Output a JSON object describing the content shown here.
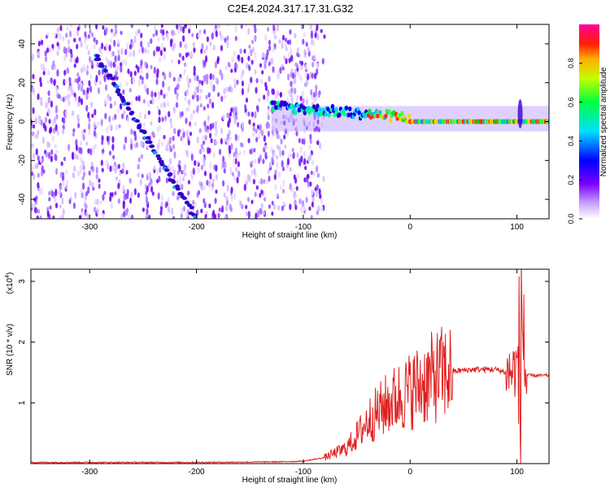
{
  "title": "C2E4.2024.317.17.31.G32",
  "chart_data": [
    {
      "type": "heatmap",
      "xlabel": "Height of straight line (km)",
      "ylabel": "Frequency (Hz)",
      "xlim": [
        -355,
        130
      ],
      "ylim": [
        -50,
        50
      ],
      "xticks": [
        -300,
        -200,
        -100,
        0,
        100
      ],
      "yticks": [
        -40,
        -20,
        0,
        20,
        40
      ],
      "colorbar": {
        "label": "Normalized spectral amplitude",
        "range": [
          0,
          1
        ],
        "ticks": [
          0.0,
          0.2,
          0.4,
          0.6,
          0.8
        ],
        "colormap": [
          "#ffffff",
          "#8000ff",
          "#0000ff",
          "#00ffff",
          "#00ff00",
          "#ffff00",
          "#ff0000",
          "#ff00ff"
        ]
      },
      "features": {
        "noise_region_x": [
          -355,
          -90
        ],
        "diagonal_track": {
          "x": [
            -295,
            -200
          ],
          "y": [
            35,
            -50
          ]
        },
        "main_signal": {
          "x": [
            -130,
            130
          ],
          "y_center": [
            6,
            0
          ]
        },
        "spike_at_x": 103
      }
    },
    {
      "type": "line",
      "xlabel": "Height of straight line (km)",
      "ylabel": "SNR (10 * v/v)",
      "y_scale_label": "(x10",
      "y_scale_exp": "4",
      "xlim": [
        -355,
        130
      ],
      "ylim": [
        0,
        3.2
      ],
      "xticks": [
        -300,
        -200,
        -100,
        0,
        100
      ],
      "yticks": [
        1,
        2,
        3
      ],
      "series": [
        {
          "color": "#e02020",
          "x": [
            -355,
            -300,
            -200,
            -120,
            -100,
            -80,
            -60,
            -50,
            -40,
            -30,
            -20,
            -10,
            0,
            10,
            20,
            30,
            40,
            60,
            80,
            90,
            95,
            100,
            103,
            106,
            108,
            110,
            115,
            130
          ],
          "y": [
            0.02,
            0.02,
            0.02,
            0.03,
            0.04,
            0.1,
            0.25,
            0.45,
            0.7,
            0.85,
            1.0,
            1.1,
            1.2,
            1.3,
            1.4,
            1.48,
            1.52,
            1.55,
            1.55,
            1.5,
            1.5,
            1.6,
            1.5,
            2.5,
            1.45,
            1.45,
            1.45,
            1.45
          ]
        }
      ]
    }
  ]
}
